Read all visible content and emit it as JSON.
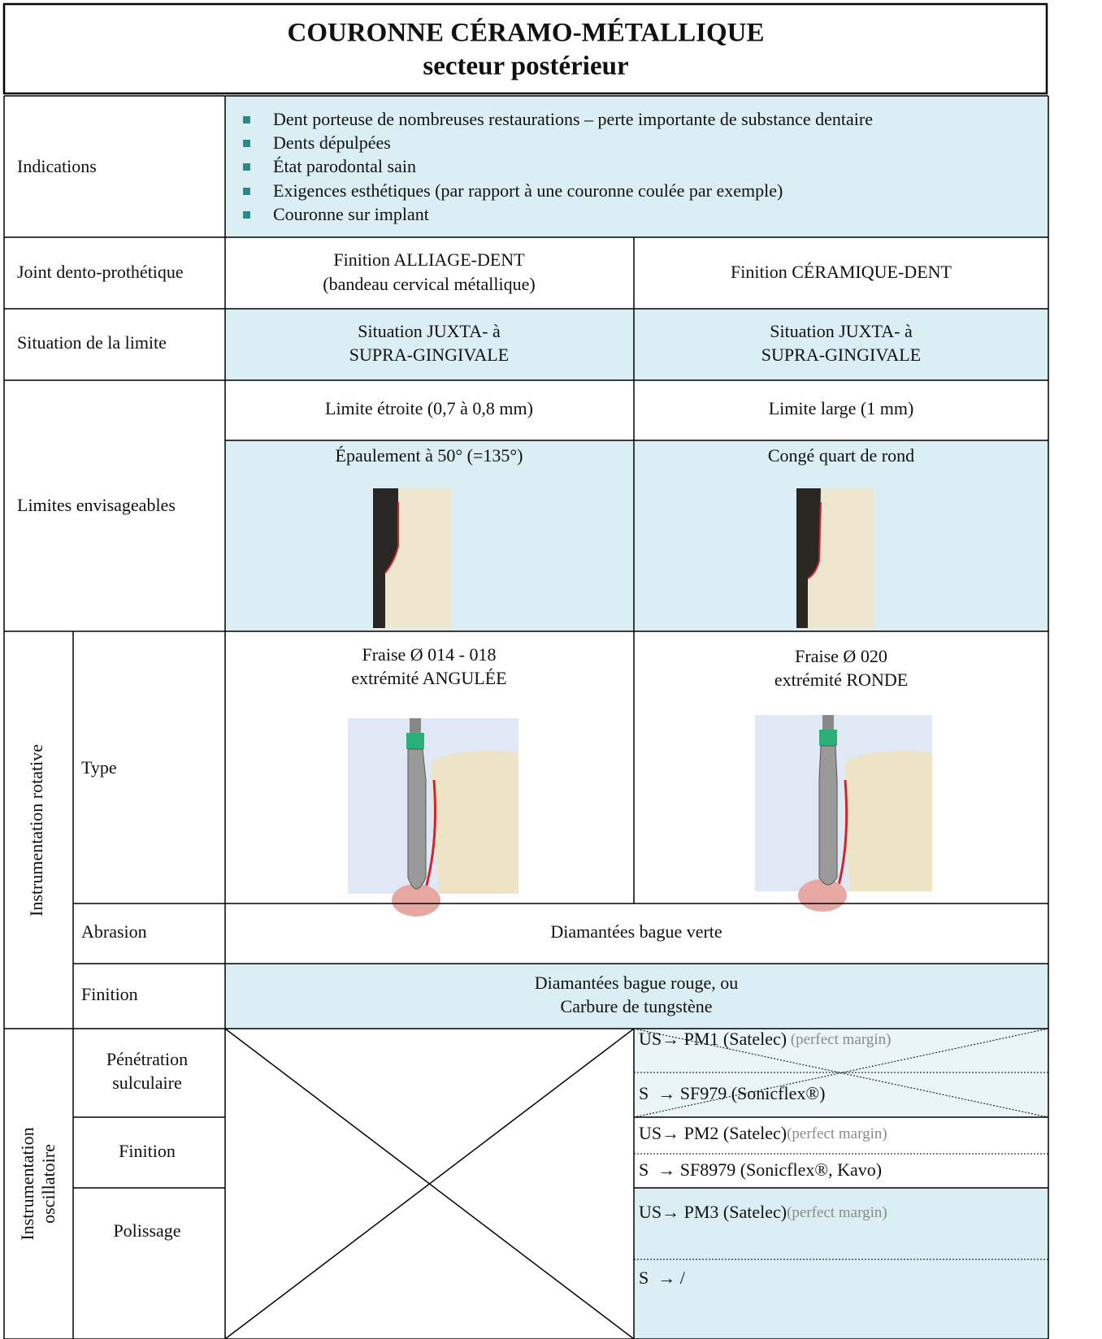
{
  "header": {
    "title": "COURONNE CÉRAMO-MÉTALLIQUE",
    "subtitle": "secteur postérieur"
  },
  "indications": {
    "label": "Indications",
    "items": [
      "Dent porteuse de nombreuses restaurations – perte importante de substance dentaire",
      "Dents dépulpées",
      "État parodontal sain",
      "Exigences esthétiques (par rapport à une couronne coulée par exemple)",
      "Couronne sur implant"
    ]
  },
  "joint": {
    "label": "Joint dento-prothétique",
    "left": [
      "Finition ALLIAGE-DENT",
      "(bandeau cervical métallique)"
    ],
    "right": [
      "Finition CÉRAMIQUE-DENT"
    ]
  },
  "situation": {
    "label": "Situation de la limite",
    "left": [
      "Situation JUXTA- à",
      "SUPRA-GINGIVALE"
    ],
    "right": [
      "Situation JUXTA- à",
      "SUPRA-GINGIVALE"
    ]
  },
  "limites": {
    "label": "Limites envisageables",
    "left_width": "Limite étroite (0,7 à 0,8 mm)",
    "right_width": "Limite large (1 mm)",
    "left_shape": "Épaulement à 50° (=135°)",
    "right_shape": "Congé quart de rond"
  },
  "rotative": {
    "label": "Instrumentation rotative",
    "type": {
      "label": "Type",
      "left": [
        "Fraise Ø 014 - 018",
        "extrémité ANGULÉE"
      ],
      "right": [
        "Fraise Ø 020",
        "extrémité RONDE"
      ]
    },
    "abrasion": {
      "label": "Abrasion",
      "value": "Diamantées bague verte"
    },
    "finition": {
      "label": "Finition",
      "value": [
        "Diamantées bague rouge, ou",
        "Carbure de tungstène"
      ]
    }
  },
  "oscillatoire": {
    "label": [
      "Instrumentation",
      "oscillatoire"
    ],
    "penetration": {
      "label": [
        "Pénétration",
        "sulculaire"
      ],
      "us": "US→ PM1 (Satelec)",
      "note": " (perfect margin)",
      "s": "S  → SF979 (Sonicflex®)"
    },
    "finition": {
      "label": "Finition",
      "us": "US→ PM2 (Satelec)",
      "note": "(perfect margin)",
      "s": "S  → SF8979 (Sonicflex®, Kavo)"
    },
    "polissage": {
      "label": "Polissage",
      "us": "US→ PM3 (Satelec)",
      "note": "(perfect margin)",
      "s": "S  → /"
    }
  }
}
